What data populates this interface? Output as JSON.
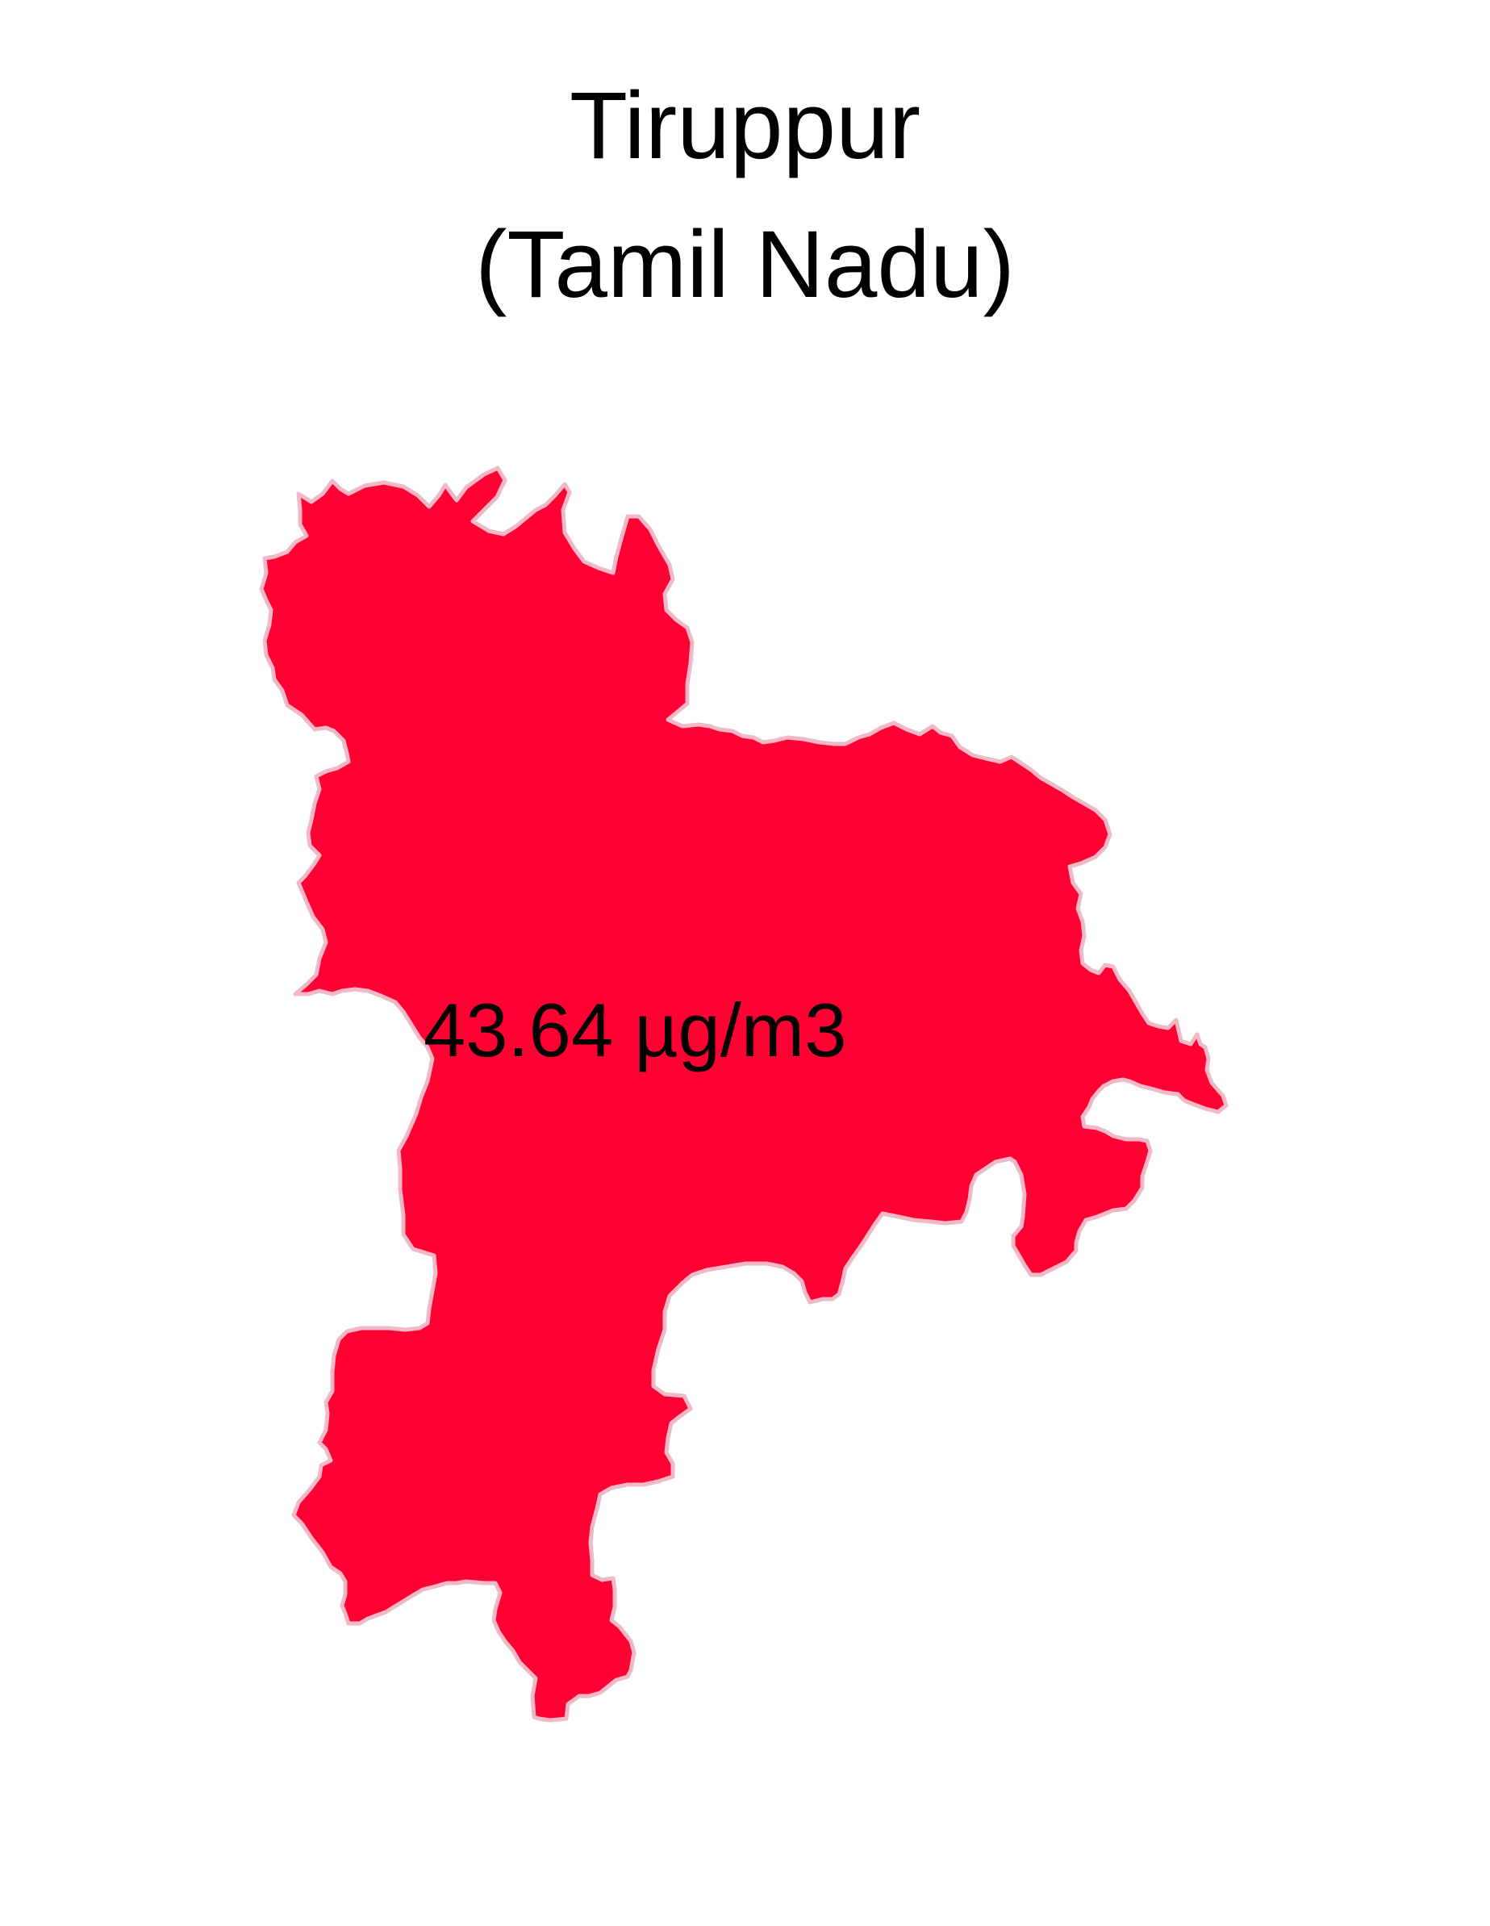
{
  "title": {
    "line1": "Tiruppur",
    "line2": "(Tamil Nadu)"
  },
  "district": {
    "name": "Tiruppur",
    "state": "Tamil Nadu",
    "value_label": "43.64 µg/m3",
    "value": 43.64,
    "unit": "µg/m3",
    "fill_color": "#ff0033",
    "border_color": "#f2b8c6"
  }
}
